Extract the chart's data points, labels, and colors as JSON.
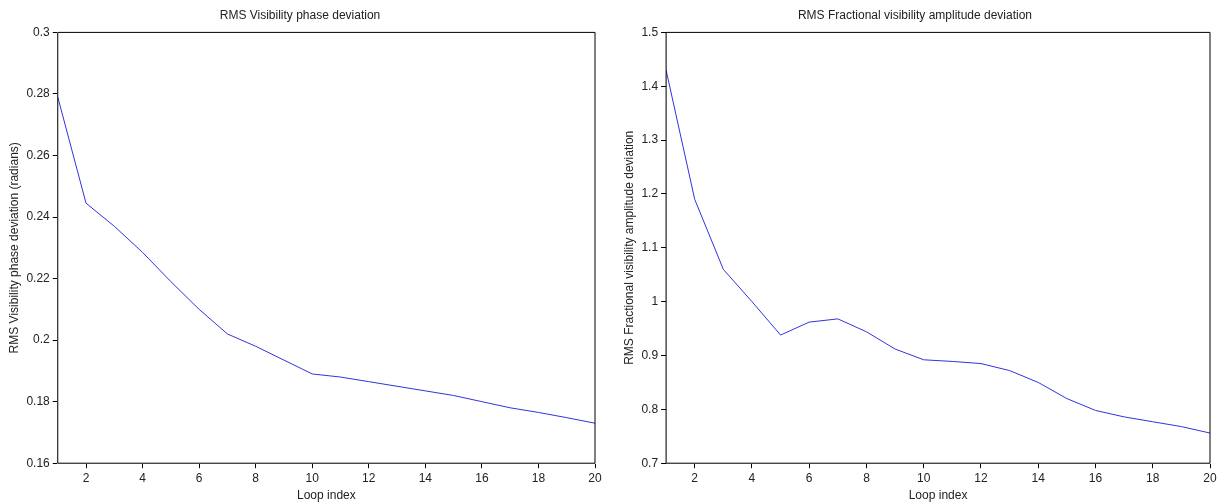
{
  "chart_data": [
    {
      "type": "line",
      "title": "RMS Visibility phase deviation",
      "xlabel": "Loop index",
      "ylabel": "RMS Visibility phase deviation (radians)",
      "x": [
        1,
        2,
        3,
        4,
        5,
        6,
        7,
        8,
        9,
        10,
        11,
        12,
        13,
        14,
        15,
        16,
        17,
        18,
        19,
        20
      ],
      "series": [
        {
          "color": "#3333dd",
          "values": [
            0.279,
            0.2445,
            0.237,
            0.2285,
            0.219,
            0.21,
            0.202,
            0.198,
            0.1935,
            0.189,
            0.188,
            0.1865,
            0.185,
            0.1835,
            0.182,
            0.18,
            0.178,
            0.1765,
            0.1748,
            0.173
          ]
        }
      ],
      "xlim": [
        1,
        20
      ],
      "xticks": [
        2,
        4,
        6,
        8,
        10,
        12,
        14,
        16,
        18,
        20
      ],
      "ylim": [
        0.16,
        0.3
      ],
      "yticks": [
        0.16,
        0.18,
        0.2,
        0.22,
        0.24,
        0.26,
        0.28,
        0.3
      ],
      "grid": false,
      "legend": false,
      "marker": "none",
      "line_style": "solid"
    },
    {
      "type": "line",
      "title": "RMS Fractional visibility amplitude deviation",
      "xlabel": "Loop index",
      "ylabel": "RMS Fractional visibility amplitude deviation",
      "x": [
        1,
        2,
        3,
        4,
        5,
        6,
        7,
        8,
        9,
        10,
        11,
        12,
        13,
        14,
        15,
        16,
        17,
        18,
        19,
        20
      ],
      "series": [
        {
          "color": "#3333dd",
          "values": [
            1.43,
            1.19,
            1.06,
            1.0,
            0.938,
            0.962,
            0.968,
            0.944,
            0.912,
            0.892,
            0.889,
            0.885,
            0.872,
            0.85,
            0.82,
            0.798,
            0.786,
            0.777,
            0.768,
            0.756
          ]
        }
      ],
      "xlim": [
        1,
        20
      ],
      "xticks": [
        2,
        4,
        6,
        8,
        10,
        12,
        14,
        16,
        18,
        20
      ],
      "ylim": [
        0.7,
        1.5
      ],
      "yticks": [
        0.7,
        0.8,
        0.9,
        1,
        1.1,
        1.2,
        1.3,
        1.4,
        1.5
      ],
      "grid": false,
      "legend": false,
      "marker": "none",
      "line_style": "solid"
    }
  ]
}
